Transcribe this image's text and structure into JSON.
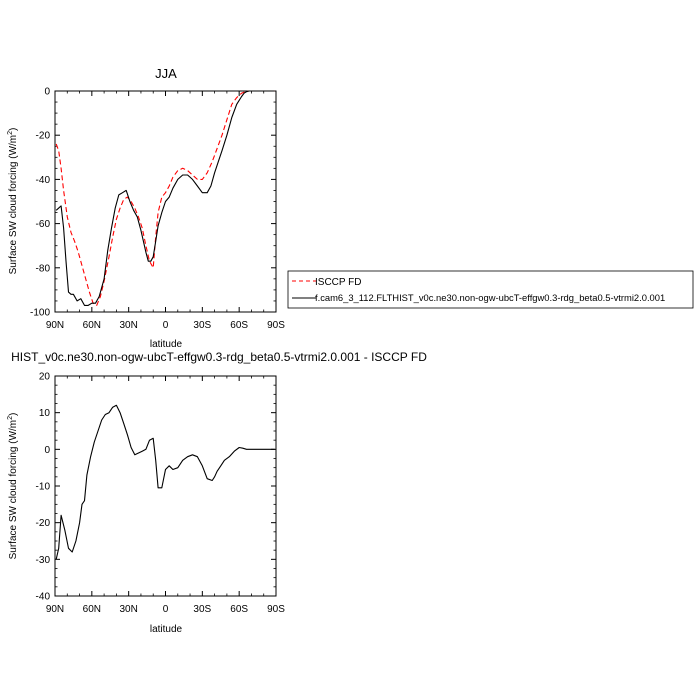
{
  "chart_data": [
    {
      "type": "line",
      "title": "JJA",
      "xlabel": "latitude",
      "ylabel_main": "Surface SW cloud forcing (W/m",
      "ylabel_sup": "2",
      "ylabel_end": ")",
      "xlim": [
        90,
        -90
      ],
      "ylim": [
        -100,
        0
      ],
      "xticks": [
        {
          "value": 90,
          "label": "90N"
        },
        {
          "value": 60,
          "label": "60N"
        },
        {
          "value": 30,
          "label": "30N"
        },
        {
          "value": 0,
          "label": "0"
        },
        {
          "value": -30,
          "label": "30S"
        },
        {
          "value": -60,
          "label": "60S"
        },
        {
          "value": -90,
          "label": "90S"
        }
      ],
      "yticks": [
        {
          "value": 0,
          "label": "0"
        },
        {
          "value": -20,
          "label": "-20"
        },
        {
          "value": -40,
          "label": "-40"
        },
        {
          "value": -60,
          "label": "-60"
        },
        {
          "value": -80,
          "label": "-80"
        },
        {
          "value": -100,
          "label": "-100"
        }
      ],
      "legend_position": "outside-right",
      "series": [
        {
          "name": "ISCCP FD",
          "color": "#ff0000",
          "dash": true,
          "x": [
            89,
            87,
            85,
            83,
            80,
            77,
            74,
            71,
            68,
            65,
            62,
            59,
            56,
            53,
            50,
            46,
            43,
            40,
            37,
            34,
            31,
            28,
            25,
            22,
            19,
            16,
            13,
            10,
            8,
            6,
            3,
            0,
            -3,
            -6,
            -10,
            -14,
            -18,
            -22,
            -26,
            -30,
            -34,
            -38,
            -42,
            -46,
            -50,
            -54,
            -58,
            -62,
            -64,
            -66,
            -68,
            -70,
            -72,
            -75,
            -80,
            -85,
            -89
          ],
          "y": [
            -24,
            -27,
            -35,
            -45,
            -57,
            -64,
            -68,
            -73,
            -79,
            -85,
            -91,
            -96,
            -97,
            -93,
            -86,
            -75,
            -66,
            -58,
            -53,
            -49,
            -48,
            -50,
            -53,
            -57,
            -62,
            -70,
            -77,
            -80,
            -66,
            -55,
            -48,
            -46,
            -43,
            -39,
            -36,
            -35,
            -36,
            -38,
            -40,
            -40,
            -37,
            -32,
            -26,
            -20,
            -13,
            -6,
            -3,
            -1,
            -0.5,
            -0.2,
            0,
            0,
            0,
            0,
            0,
            0,
            0
          ]
        },
        {
          "name": "f.cam6_3_112.FLTHIST_v0c.ne30.non-ogw-ubcT-effgw0.3-rdg_beta0.5-vtrmi2.0.001",
          "color": "#000000",
          "dash": false,
          "x": [
            89,
            87,
            85,
            83,
            81,
            79,
            77,
            75,
            72,
            69,
            66,
            63,
            60,
            57,
            54,
            50,
            47,
            44,
            41,
            38,
            35,
            32,
            29,
            26,
            23,
            20,
            18,
            16,
            14,
            12,
            10,
            8,
            6,
            3,
            0,
            -3,
            -6,
            -10,
            -14,
            -18,
            -22,
            -26,
            -30,
            -34,
            -37,
            -40,
            -43,
            -46,
            -50,
            -54,
            -58,
            -62,
            -64,
            -66,
            -68,
            -70,
            -75,
            -80,
            -85,
            -89
          ],
          "y": [
            -54,
            -53,
            -52,
            -62,
            -77,
            -91,
            -92,
            -92,
            -95,
            -94,
            -97,
            -97,
            -96,
            -96,
            -93,
            -85,
            -72,
            -62,
            -53,
            -47,
            -46,
            -45,
            -50,
            -54,
            -57,
            -63,
            -68,
            -73,
            -77,
            -77,
            -75,
            -68,
            -61,
            -55,
            -50,
            -48,
            -44,
            -40,
            -38,
            -38,
            -40,
            -43,
            -46,
            -46,
            -43,
            -37,
            -32,
            -27,
            -20,
            -12,
            -6,
            -2.5,
            -1,
            -0.3,
            0,
            0,
            0,
            0,
            0,
            0
          ]
        }
      ]
    },
    {
      "type": "line",
      "title": "HIST_v0c.ne30.non-ogw-ubcT-effgw0.3-rdg_beta0.5-vtrmi2.0.001 - ISCCP FD",
      "xlabel": "latitude",
      "ylabel_main": "Surface SW cloud forcing (W/m",
      "ylabel_sup": "2",
      "ylabel_end": ")",
      "xlim": [
        90,
        -90
      ],
      "ylim": [
        -40,
        20
      ],
      "xticks": [
        {
          "value": 90,
          "label": "90N"
        },
        {
          "value": 60,
          "label": "60N"
        },
        {
          "value": 30,
          "label": "30N"
        },
        {
          "value": 0,
          "label": "0"
        },
        {
          "value": -30,
          "label": "30S"
        },
        {
          "value": -60,
          "label": "60S"
        },
        {
          "value": -90,
          "label": "90S"
        }
      ],
      "yticks": [
        {
          "value": 20,
          "label": "20"
        },
        {
          "value": 10,
          "label": "10"
        },
        {
          "value": 0,
          "label": "0"
        },
        {
          "value": -10,
          "label": "-10"
        },
        {
          "value": -20,
          "label": "-20"
        },
        {
          "value": -30,
          "label": "-30"
        },
        {
          "value": -40,
          "label": "-40"
        }
      ],
      "series": [
        {
          "color": "#000000",
          "dash": false,
          "x": [
            89,
            87,
            85,
            82,
            79,
            76,
            73,
            70,
            68,
            66,
            64,
            61,
            58,
            55,
            52,
            49,
            46,
            43,
            40,
            37,
            34,
            31,
            28,
            25,
            22,
            19,
            16,
            13,
            10,
            8,
            6,
            3,
            0,
            -3,
            -6,
            -10,
            -14,
            -18,
            -22,
            -26,
            -30,
            -34,
            -38,
            -40,
            -42,
            -45,
            -48,
            -52,
            -56,
            -60,
            -63,
            -66,
            -70,
            -75,
            -80,
            -85,
            -89
          ],
          "y": [
            -30,
            -27,
            -18,
            -22,
            -27,
            -28,
            -25,
            -20,
            -15,
            -14,
            -7,
            -2,
            2,
            5,
            8,
            9.5,
            10,
            11.5,
            12,
            10,
            7,
            4,
            0.5,
            -1.5,
            -1,
            -0.5,
            0,
            2.5,
            3,
            -3,
            -10.5,
            -10.5,
            -5.5,
            -4.5,
            -5.5,
            -5,
            -3,
            -2,
            -1.5,
            -2,
            -4.5,
            -8,
            -8.5,
            -7.5,
            -6,
            -4.5,
            -3,
            -2,
            -0.5,
            0.5,
            0.3,
            0,
            0,
            0,
            0,
            0,
            0
          ]
        }
      ]
    }
  ]
}
